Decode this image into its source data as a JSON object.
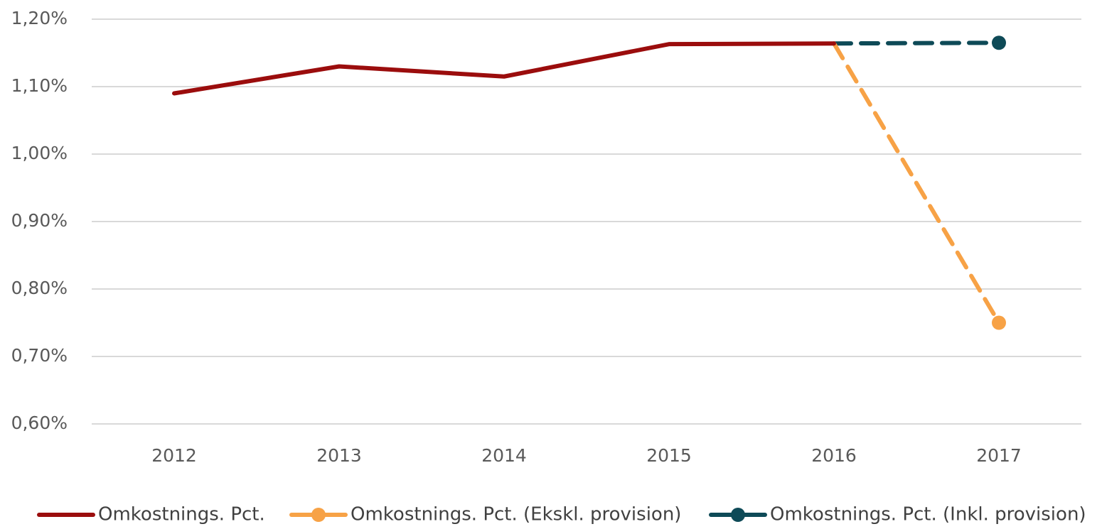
{
  "chart_data": {
    "type": "line",
    "categories": [
      "2012",
      "2013",
      "2014",
      "2015",
      "2016",
      "2017"
    ],
    "series": [
      {
        "name": "Omkostnings. Pct.",
        "color": "#9b0d0d",
        "dashed": false,
        "markers": "none",
        "values": [
          1.09,
          1.13,
          1.115,
          1.163,
          1.164,
          null
        ]
      },
      {
        "name": "Omkostnings. Pct. (Ekskl. provision)",
        "color": "#f7a246",
        "dashed": true,
        "markers": "last",
        "values": [
          null,
          null,
          null,
          null,
          1.164,
          0.75
        ]
      },
      {
        "name": "Omkostnings. Pct. (Inkl. provision)",
        "color": "#0e4a57",
        "dashed": true,
        "markers": "last",
        "values": [
          null,
          null,
          null,
          null,
          1.164,
          1.165
        ]
      }
    ],
    "ylim": [
      0.6,
      1.2
    ],
    "yticks": [
      {
        "value": 0.6,
        "label": "0,60%"
      },
      {
        "value": 0.7,
        "label": "0,70%"
      },
      {
        "value": 0.8,
        "label": "0,80%"
      },
      {
        "value": 0.9,
        "label": "0,90%"
      },
      {
        "value": 1.0,
        "label": "1,00%"
      },
      {
        "value": 1.1,
        "label": "1,10%"
      },
      {
        "value": 1.2,
        "label": "1,20%"
      }
    ],
    "grid": true,
    "legend": "bottom"
  }
}
